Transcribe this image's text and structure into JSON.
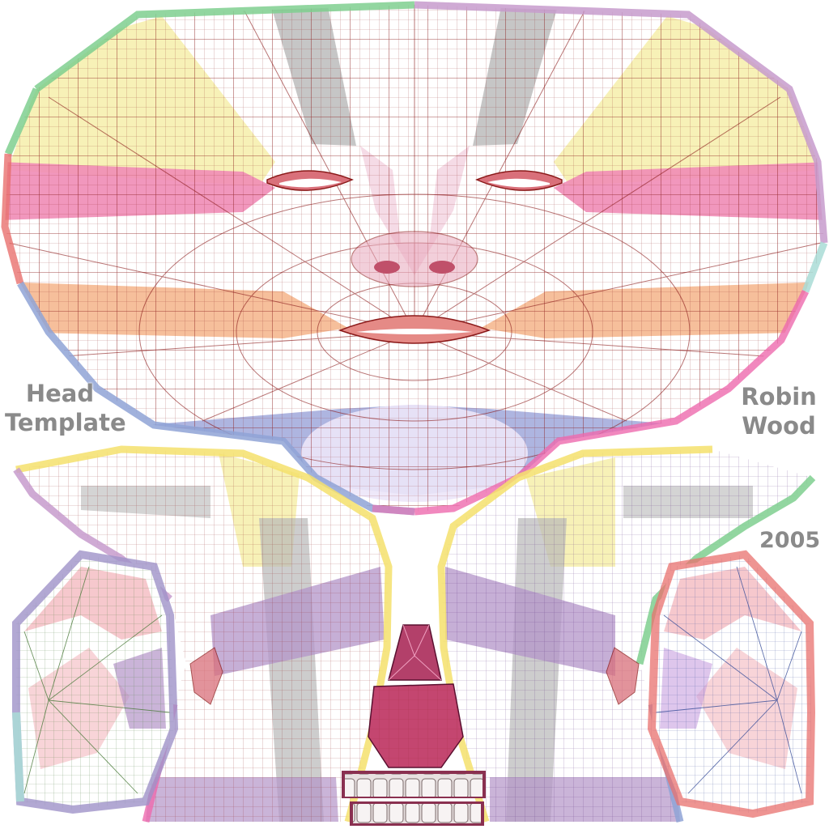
{
  "labels": {
    "head_line1": "Head",
    "head_line2": "Template",
    "author_line1": "Robin",
    "author_line2": "Wood",
    "year": "2005"
  },
  "colors": {
    "background": "#ffffff",
    "text": "#8a8a8a",
    "wire": "#8b1a1a",
    "yellow_band": "#f6eeaa",
    "pink_band": "#f08cb6",
    "grey_band": "#b8b8b8",
    "orange_band": "#f4b48a",
    "blue_band": "#9aa2d8",
    "purple_band": "#b394c8",
    "rim_green": "#7fcf8f",
    "rim_purple": "#c79bcc",
    "rim_pink": "#ee6aae",
    "rim_blue": "#8fa3d6",
    "rim_red": "#e8706e",
    "rim_cyan": "#a9dcd6",
    "rim_yellow": "#f4e06c",
    "gum": "#c44670"
  },
  "regions": [
    {
      "name": "face-uv-shell"
    },
    {
      "name": "side-head-left-uv-shell"
    },
    {
      "name": "side-head-right-uv-shell"
    },
    {
      "name": "ear-left-uv-shell"
    },
    {
      "name": "ear-right-uv-shell"
    },
    {
      "name": "tongue-uv-shell"
    },
    {
      "name": "teeth-texture"
    }
  ]
}
